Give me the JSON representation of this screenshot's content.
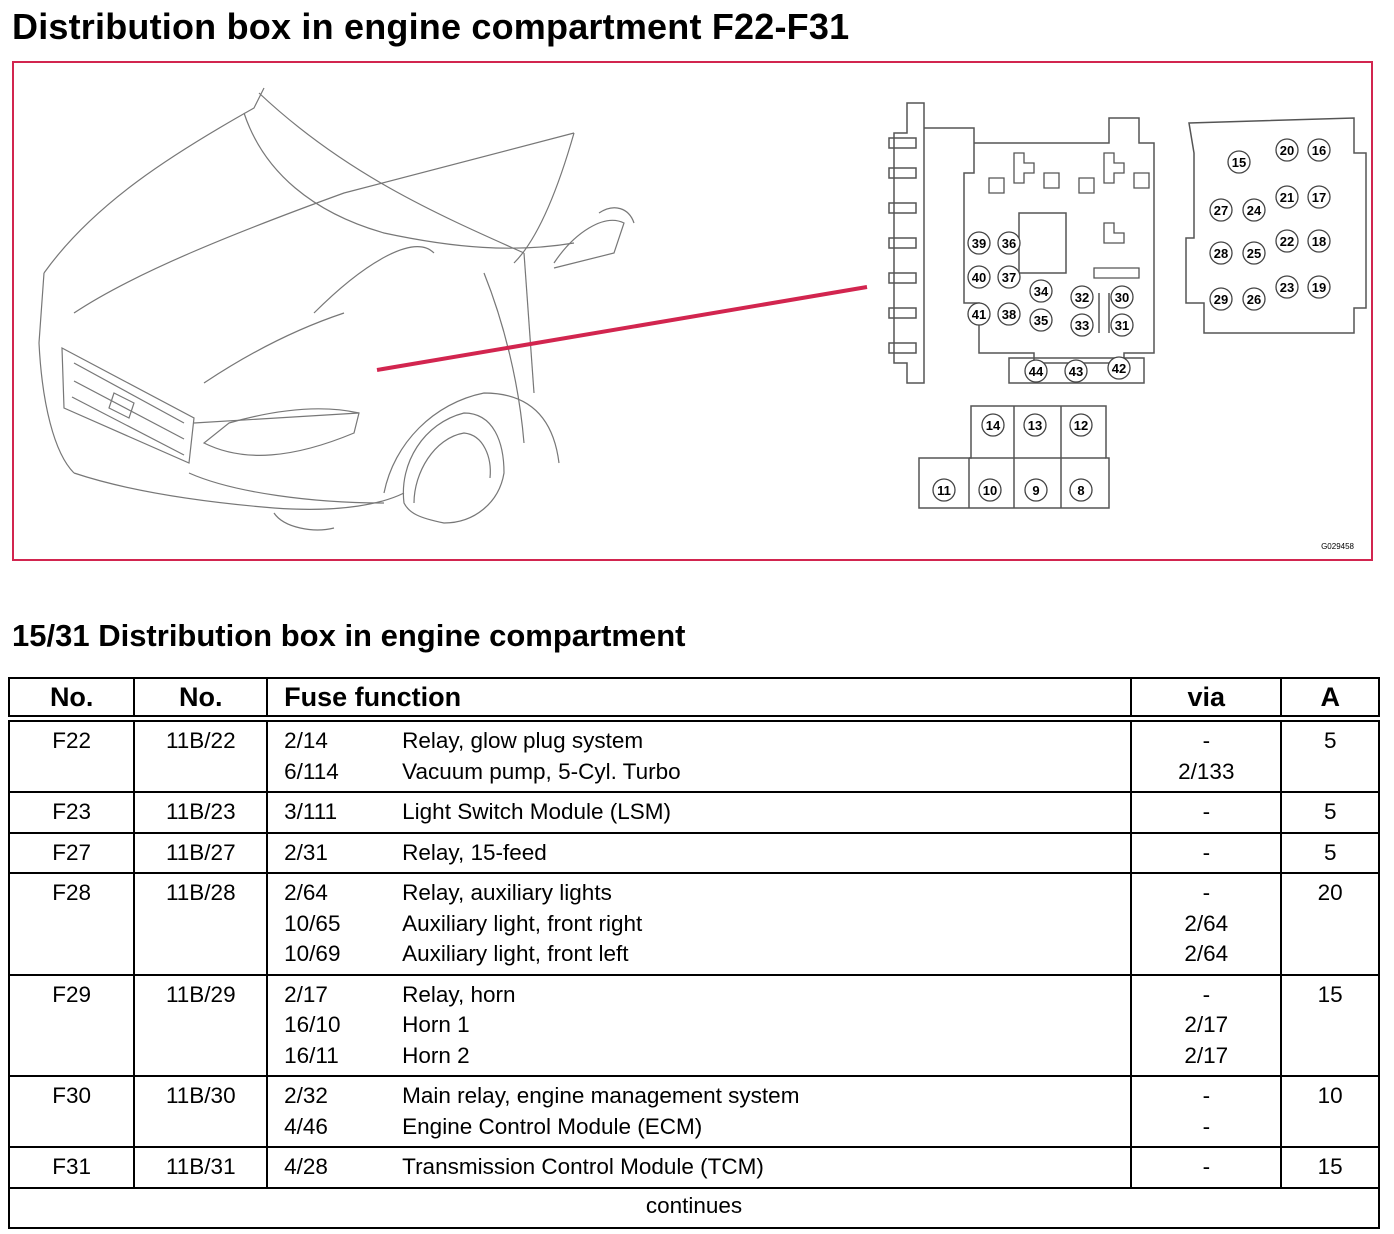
{
  "page_title": "Distribution box in engine compartment F22-F31",
  "figure": {
    "code": "G029458",
    "fuse_labels": [
      "15",
      "20",
      "16",
      "21",
      "17",
      "27",
      "24",
      "22",
      "18",
      "28",
      "25",
      "23",
      "19",
      "29",
      "26",
      "39",
      "36",
      "40",
      "37",
      "34",
      "32",
      "30",
      "41",
      "38",
      "35",
      "33",
      "31",
      "44",
      "43",
      "42",
      "14",
      "13",
      "12",
      "11",
      "10",
      "9",
      "8"
    ]
  },
  "section_title": "15/31 Distribution box in engine compartment",
  "table": {
    "headers": {
      "no": "No.",
      "no2": "No.",
      "func": "Fuse function",
      "via": "via",
      "a": "A"
    },
    "rows": [
      {
        "no": "F22",
        "no2": "11B/22",
        "a": "5",
        "items": [
          {
            "code": "2/14",
            "func": "Relay, glow plug system",
            "via": "-"
          },
          {
            "code": "6/114",
            "func": "Vacuum pump, 5-Cyl. Turbo",
            "via": "2/133"
          }
        ]
      },
      {
        "no": "F23",
        "no2": "11B/23",
        "a": "5",
        "items": [
          {
            "code": "3/111",
            "func": "Light Switch Module (LSM)",
            "via": "-"
          }
        ]
      },
      {
        "no": "F27",
        "no2": "11B/27",
        "a": "5",
        "items": [
          {
            "code": "2/31",
            "func": "Relay, 15-feed",
            "via": "-"
          }
        ]
      },
      {
        "no": "F28",
        "no2": "11B/28",
        "a": "20",
        "items": [
          {
            "code": "2/64",
            "func": "Relay, auxiliary lights",
            "via": "-"
          },
          {
            "code": "10/65",
            "func": "Auxiliary light, front right",
            "via": "2/64"
          },
          {
            "code": "10/69",
            "func": "Auxiliary light, front left",
            "via": "2/64"
          }
        ]
      },
      {
        "no": "F29",
        "no2": "11B/29",
        "a": "15",
        "items": [
          {
            "code": "2/17",
            "func": "Relay, horn",
            "via": "-"
          },
          {
            "code": "16/10",
            "func": "Horn 1",
            "via": "2/17"
          },
          {
            "code": "16/11",
            "func": "Horn 2",
            "via": "2/17"
          }
        ]
      },
      {
        "no": "F30",
        "no2": "11B/30",
        "a": "10",
        "items": [
          {
            "code": "2/32",
            "func": "Main relay, engine management system",
            "via": "-"
          },
          {
            "code": "4/46",
            "func": "Engine Control Module (ECM)",
            "via": "-"
          }
        ]
      },
      {
        "no": "F31",
        "no2": "11B/31",
        "a": "15",
        "items": [
          {
            "code": "4/28",
            "func": "Transmission Control Module (TCM)",
            "via": "-"
          }
        ]
      }
    ],
    "footer": "continues"
  },
  "colors": {
    "accent": "#d2254f",
    "line": "#000000",
    "drawing": "#555555"
  }
}
